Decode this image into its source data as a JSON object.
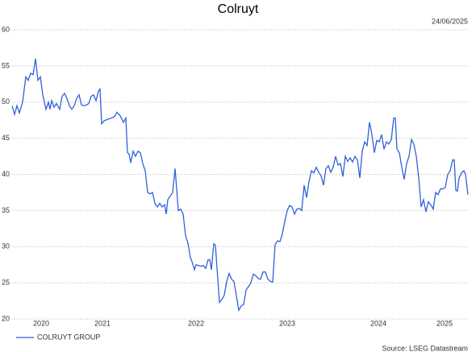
{
  "chart_data": {
    "type": "line",
    "title": "Colruyt",
    "date": "24/06/2025",
    "source": "Source: LSEG Datastream",
    "x": [
      2020.0,
      2020.03,
      2020.06,
      2020.09,
      2020.13,
      2020.17,
      2020.2,
      2020.23,
      2020.26,
      2020.29,
      2020.32,
      2020.35,
      2020.38,
      2020.42,
      2020.45,
      2020.47,
      2020.49,
      2020.52,
      2020.55,
      2020.59,
      2020.62,
      2020.65,
      2020.68,
      2020.71,
      2020.74,
      2020.77,
      2020.8,
      2020.83,
      2020.86,
      2020.89,
      2020.92,
      2020.95,
      2020.98,
      2021.01,
      2021.04,
      2021.07,
      2021.09,
      2021.11,
      2021.14,
      2021.18,
      2021.23,
      2021.27,
      2021.3,
      2021.34,
      2021.38,
      2021.41,
      2021.43,
      2021.45,
      2021.47,
      2021.5,
      2021.53,
      2021.56,
      2021.59,
      2021.62,
      2021.65,
      2021.68,
      2021.71,
      2021.74,
      2021.77,
      2021.8,
      2021.83,
      2021.86,
      2021.89,
      2021.91,
      2021.93,
      2021.96,
      2021.99,
      2022.02,
      2022.04,
      2022.06,
      2022.09,
      2022.12,
      2022.15,
      2022.18,
      2022.21,
      2022.24,
      2022.26,
      2022.28,
      2022.31,
      2022.34,
      2022.37,
      2022.4,
      2022.43,
      2022.45,
      2022.47,
      2022.5,
      2022.52,
      2022.54,
      2022.57,
      2022.6,
      2022.63,
      2022.66,
      2022.69,
      2022.72,
      2022.75,
      2022.78,
      2022.81,
      2022.84,
      2022.87,
      2022.9,
      2022.93,
      2022.96,
      2022.99,
      2023.02,
      2023.05,
      2023.08,
      2023.11,
      2023.14,
      2023.17,
      2023.2,
      2023.23,
      2023.26,
      2023.29,
      2023.32,
      2023.35,
      2023.38,
      2023.41,
      2023.44,
      2023.47,
      2023.5,
      2023.53,
      2023.56,
      2023.59,
      2023.62,
      2023.65,
      2023.68,
      2023.71,
      2023.74,
      2023.77,
      2023.8,
      2023.83,
      2023.86,
      2023.89,
      2023.92,
      2023.95,
      2023.98,
      2024.01,
      2024.04,
      2024.07,
      2024.1,
      2024.13,
      2024.16,
      2024.19,
      2024.22,
      2024.25,
      2024.28,
      2024.31,
      2024.34,
      2024.37,
      2024.4,
      2024.43,
      2024.46,
      2024.49,
      2024.52,
      2024.55,
      2024.58,
      2024.61,
      2024.64,
      2024.67,
      2024.7,
      2024.73,
      2024.75,
      2024.77,
      2024.8,
      2024.83,
      2024.86,
      2024.89,
      2024.92,
      2024.95,
      2024.98,
      2025.01,
      2025.04,
      2025.07,
      2025.1,
      2025.13,
      2025.16,
      2025.19,
      2025.22,
      2025.25,
      2025.28,
      2025.31,
      2025.34,
      2025.37,
      2025.4,
      2025.43,
      2025.46,
      2025.48,
      2025.5,
      2025.52,
      2025.54,
      2025.57,
      2025.6,
      2025.62,
      2025.65
    ],
    "series": [
      {
        "name": "COLRUYT GROUP",
        "color": "#2f62d8",
        "values": [
          49.5,
          48.3,
          49.5,
          48.5,
          50,
          53.5,
          53,
          54,
          53.8,
          56,
          53,
          53.5,
          51,
          49,
          50,
          49,
          50.2,
          49.3,
          49.8,
          49,
          50.8,
          51.2,
          50.5,
          49.5,
          49,
          49.5,
          50.5,
          51,
          49.6,
          49.5,
          49.6,
          49.8,
          50.8,
          51,
          50.2,
          51.5,
          51.8,
          47,
          47.4,
          47.6,
          47.8,
          48,
          48.6,
          48.1,
          47.2,
          47.8,
          43,
          42.8,
          41.6,
          43.2,
          42.5,
          43.2,
          43,
          41.5,
          40.5,
          37.5,
          37.3,
          37.5,
          36,
          35.5,
          36,
          35.5,
          35.8,
          34.5,
          36.5,
          37,
          37.5,
          40.8,
          38,
          35,
          35.2,
          34.5,
          31.5,
          30.5,
          28.5,
          27.6,
          26.8,
          27.5,
          27.4,
          27.3,
          27.4,
          27,
          28.2,
          28.2,
          26.8,
          30.4,
          30.2,
          27,
          22.3,
          22.7,
          23.3,
          25.2,
          26.3,
          25.5,
          25.2,
          23.2,
          21.2,
          21.8,
          22,
          24,
          24.5,
          25,
          26.2,
          26,
          25.6,
          25.5,
          26.5,
          26.5,
          25.5,
          25.2,
          25.1,
          30.3,
          30.8,
          30.7,
          31.8,
          33.5,
          35,
          35.7,
          35.5,
          34.5,
          35.2,
          35.3,
          35,
          38.5,
          36.8,
          39,
          40.5,
          40.2,
          41,
          40.3,
          39.8,
          38.5,
          40.8,
          41.2,
          40.3,
          41,
          42.5,
          41.3,
          41.5,
          39.7,
          42.5,
          41.8,
          42.3,
          41.7,
          42.5,
          42,
          39.5,
          43.2,
          44.5,
          44,
          47.2,
          45.5,
          43,
          44.7,
          44.5,
          45.5,
          43.5,
          44.5,
          44.2,
          44.8,
          47.8,
          47.8,
          43.5,
          43,
          41,
          39.3,
          41.5,
          42.5,
          44.8,
          44.2,
          42.5,
          39.5,
          35.5,
          36.5,
          34.8,
          36.2,
          35.8,
          35.2,
          37.5,
          37.2,
          38,
          38,
          38.2,
          40,
          40.5,
          42,
          42,
          37.8,
          37.7,
          39.5,
          40.2,
          40.5,
          40,
          37.2
        ]
      }
    ],
    "xlim": [
      2020.0,
      2025.65
    ],
    "xticks": [
      {
        "value": 2020.36,
        "label": "2020"
      },
      {
        "value": 2021.12,
        "label": "2021"
      },
      {
        "value": 2022.28,
        "label": "2022"
      },
      {
        "value": 2023.41,
        "label": "2023"
      },
      {
        "value": 2024.54,
        "label": "2024"
      },
      {
        "value": 2025.36,
        "label": "2025"
      }
    ],
    "ylim": [
      20,
      60
    ],
    "yticks": [
      20,
      25,
      30,
      35,
      40,
      45,
      50,
      55,
      60
    ],
    "grid": true,
    "legend": "bottom-left"
  }
}
